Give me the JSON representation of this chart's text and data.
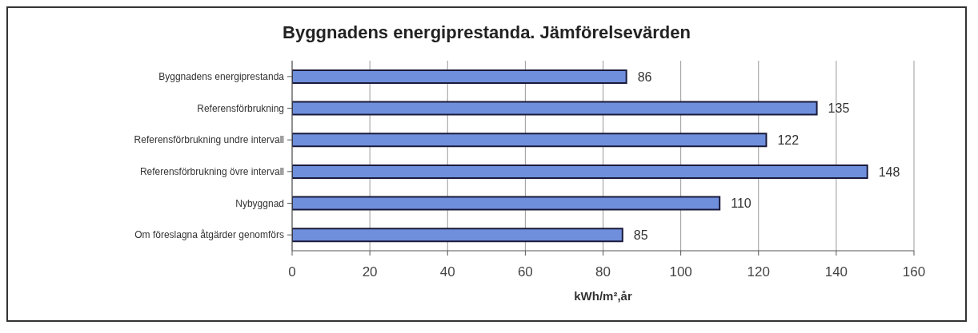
{
  "chart_data": {
    "type": "bar",
    "orientation": "horizontal",
    "title": "Byggnadens energiprestanda. Jämförelsevärden",
    "xlabel": "kWh/m²,år",
    "categories": [
      "Byggnadens energiprestanda",
      "Referensförbrukning",
      "Referensförbrukning undre intervall",
      "Referensförbrukning övre intervall",
      "Nybyggnad",
      "Om föreslagna åtgärder genomförs"
    ],
    "values": [
      86,
      135,
      122,
      148,
      110,
      85
    ],
    "color": "#6f8fdc",
    "xlim": [
      0,
      160
    ],
    "xticks": [
      0,
      20,
      40,
      60,
      80,
      100,
      120,
      140,
      160
    ],
    "grid": "x",
    "data_labels": true
  }
}
